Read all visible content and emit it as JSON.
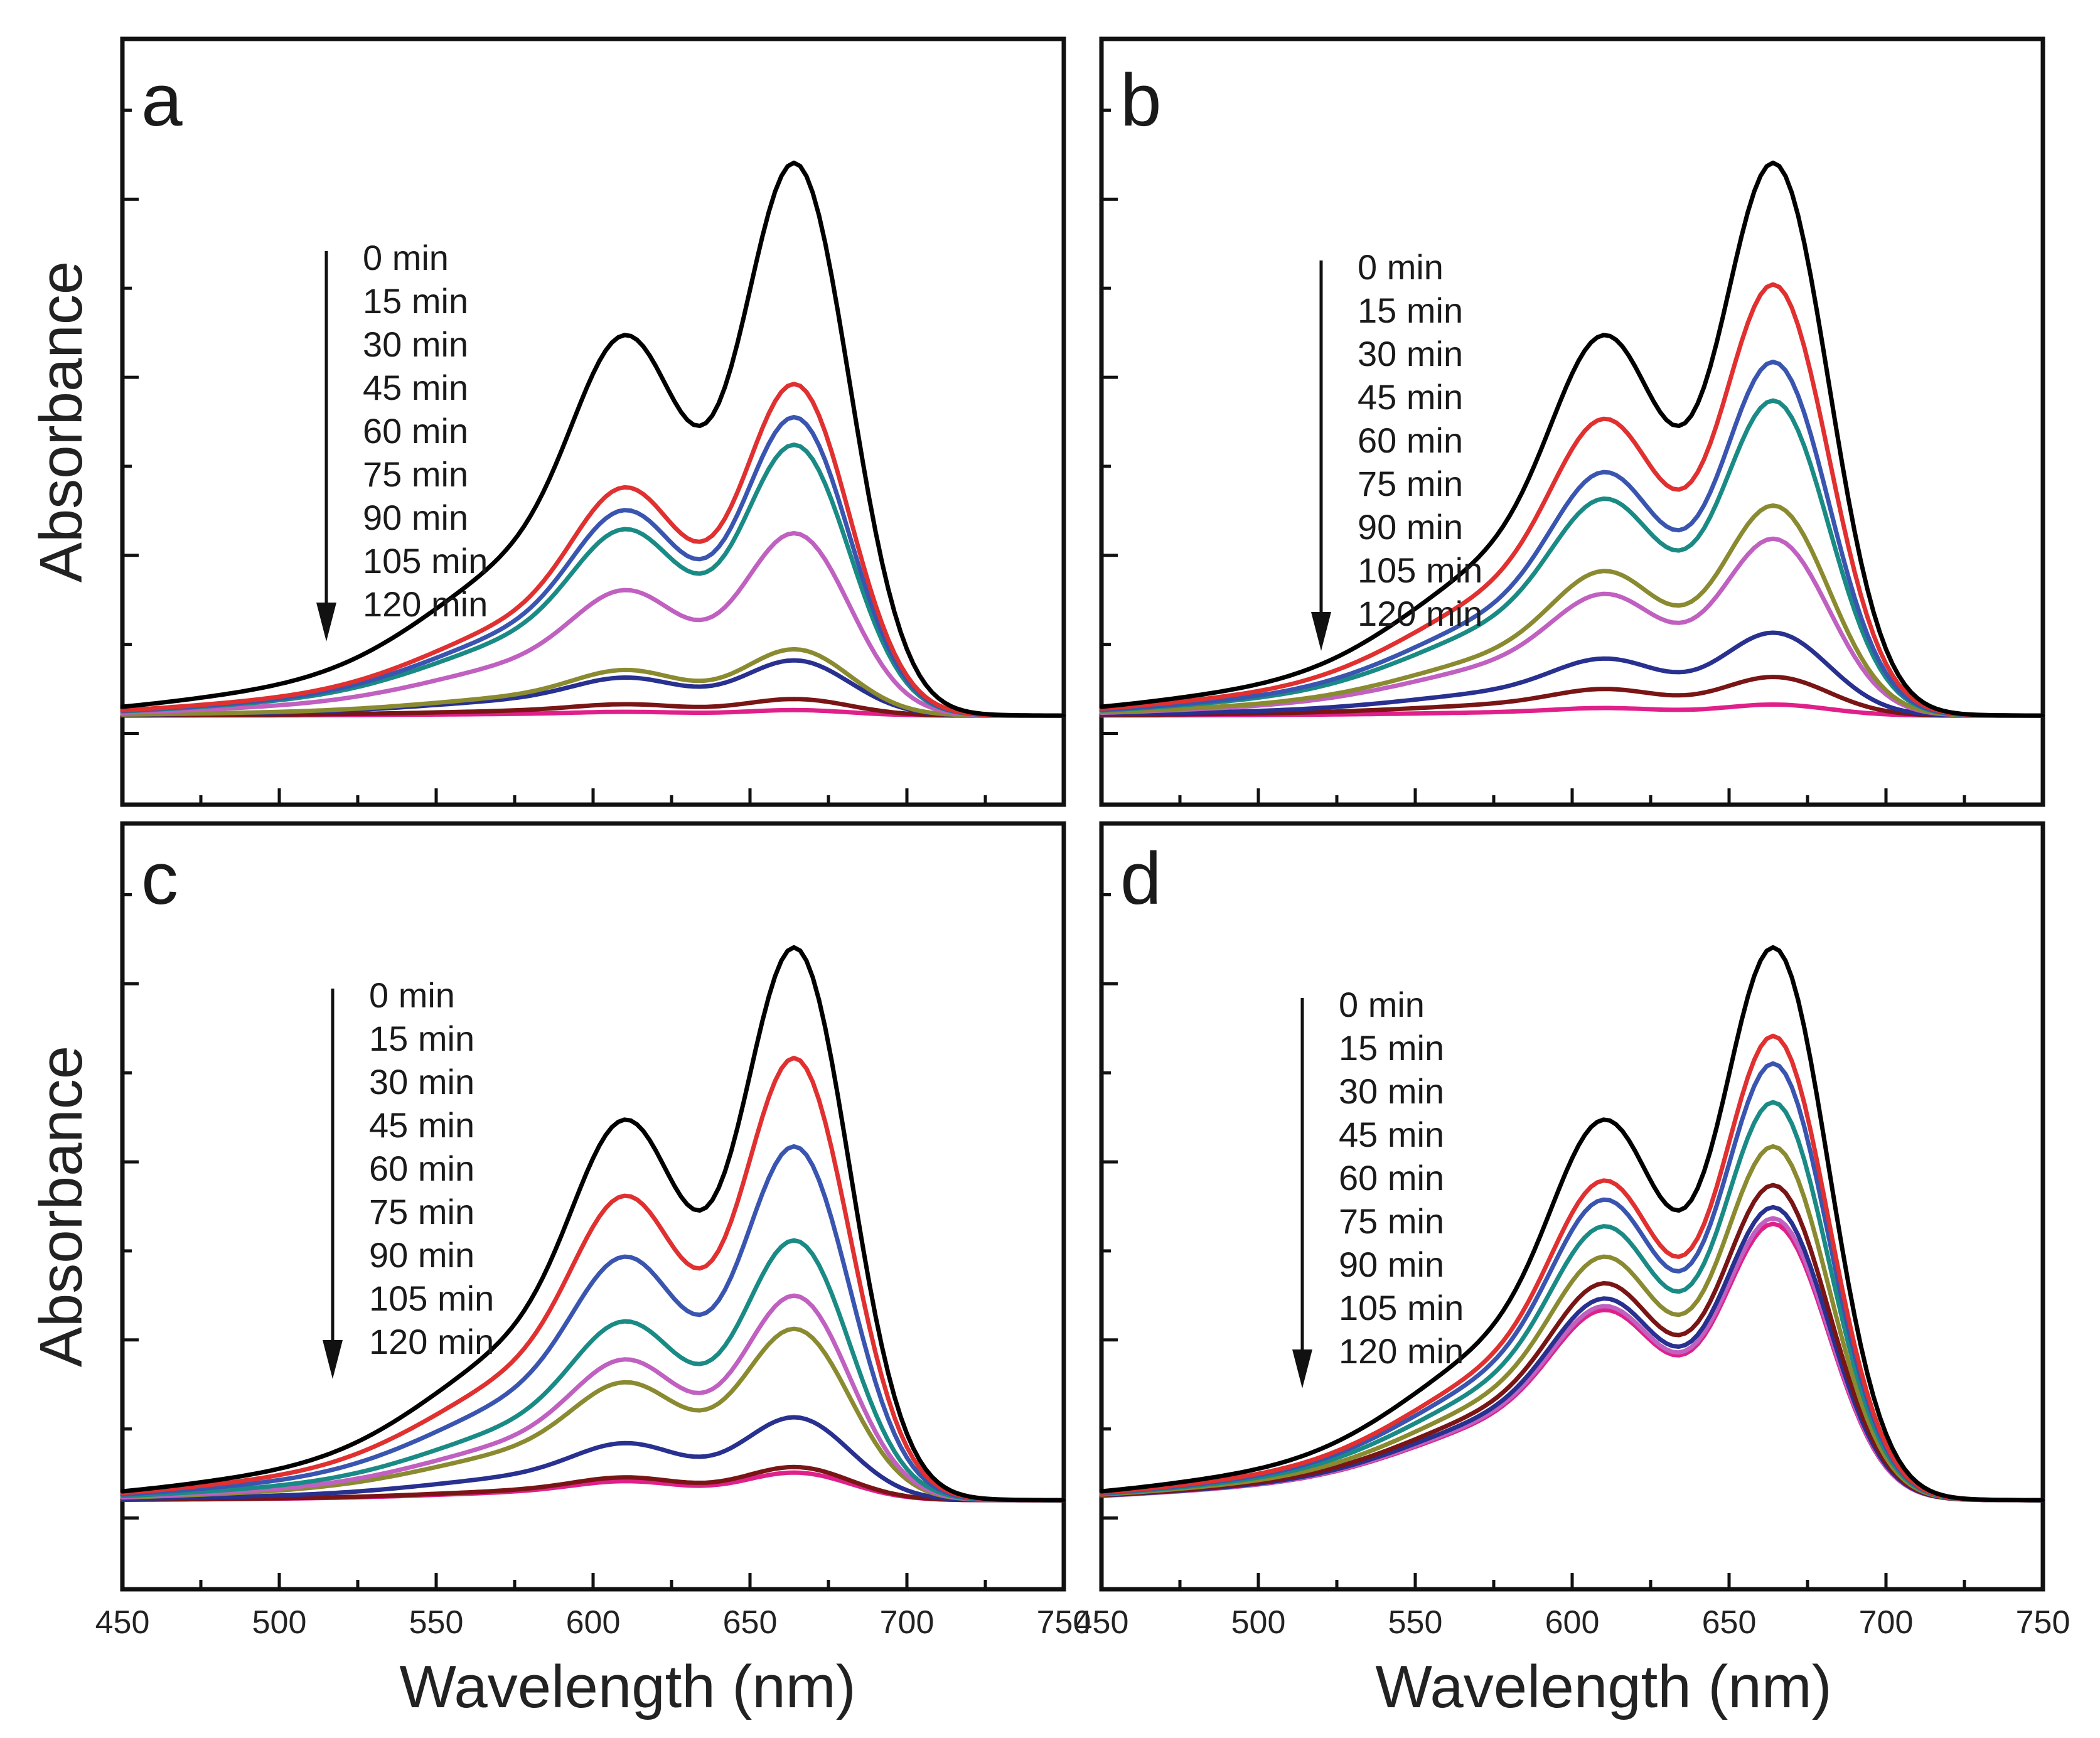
{
  "figure": {
    "y_axis_title": "Absorbance",
    "x_axis_title": "Wavelength (nm)",
    "x_tick_labels": [
      "450",
      "500",
      "550",
      "600",
      "650",
      "700",
      "750"
    ]
  },
  "chart_data": [
    {
      "type": "line",
      "panel": "a",
      "xlabel": "Wavelength (nm)",
      "ylabel": "Absorbance",
      "xlim": [
        450,
        750
      ],
      "ylim": [
        -0.25,
        1.9
      ],
      "legend": [
        "0 min",
        "15 min",
        "30 min",
        "45  min",
        "60 min",
        "75 min",
        "90 min",
        "105 min",
        "120 min"
      ],
      "series": [
        {
          "name": "0 min",
          "color": "#000000",
          "scale": 1.0,
          "base": 0.05
        },
        {
          "name": "15 min",
          "color": "#e03030",
          "scale": 0.6,
          "base": 0.03
        },
        {
          "name": "30 min",
          "color": "#3a55b0",
          "scale": 0.54,
          "base": 0.03
        },
        {
          "name": "45  min",
          "color": "#1a8a85",
          "scale": 0.49,
          "base": 0.025
        },
        {
          "name": "60 min",
          "color": "#c060c0",
          "scale": 0.33,
          "base": 0.02
        },
        {
          "name": "75 min",
          "color": "#8a8a30",
          "scale": 0.12,
          "base": 0.01
        },
        {
          "name": "90 min",
          "color": "#283090",
          "scale": 0.1,
          "base": 0.01
        },
        {
          "name": "105 min",
          "color": "#7a1515",
          "scale": 0.03,
          "base": 0.003
        },
        {
          "name": "120 min",
          "color": "#e0208a",
          "scale": 0.01,
          "base": 0.001
        }
      ]
    },
    {
      "type": "line",
      "panel": "b",
      "xlabel": "Wavelength (nm)",
      "ylabel": "Absorbance",
      "xlim": [
        450,
        750
      ],
      "ylim": [
        -0.25,
        1.9
      ],
      "legend": [
        "0 min",
        "15 min",
        "30 min",
        "45 min",
        "60 min",
        "75 min",
        "90 min",
        "105 min",
        "120 min"
      ],
      "series": [
        {
          "name": "0 min",
          "color": "#000000",
          "scale": 1.0,
          "base": 0.05
        },
        {
          "name": "15 min",
          "color": "#e03030",
          "scale": 0.78,
          "base": 0.04
        },
        {
          "name": "30 min",
          "color": "#3a55b0",
          "scale": 0.64,
          "base": 0.035
        },
        {
          "name": "45 min",
          "color": "#1a8a85",
          "scale": 0.57,
          "base": 0.03
        },
        {
          "name": "60 min",
          "color": "#8a8a30",
          "scale": 0.38,
          "base": 0.025
        },
        {
          "name": "75 min",
          "color": "#c060c0",
          "scale": 0.32,
          "base": 0.02
        },
        {
          "name": "90 min",
          "color": "#283090",
          "scale": 0.15,
          "base": 0.012
        },
        {
          "name": "105 min",
          "color": "#7a1515",
          "scale": 0.07,
          "base": 0.006
        },
        {
          "name": "120 min",
          "color": "#e0208a",
          "scale": 0.02,
          "base": 0.002
        }
      ]
    },
    {
      "type": "line",
      "panel": "c",
      "xlabel": "Wavelength (nm)",
      "ylabel": "Absorbance",
      "xlim": [
        450,
        750
      ],
      "ylim": [
        -0.25,
        1.9
      ],
      "legend": [
        "0 min",
        "15 min",
        "30 min",
        "45  min",
        "60 min",
        "75 min",
        "90 min",
        "105 min",
        "120 min"
      ],
      "series": [
        {
          "name": "0 min",
          "color": "#000000",
          "scale": 1.0,
          "base": 0.05
        },
        {
          "name": "15 min",
          "color": "#e03030",
          "scale": 0.8,
          "base": 0.04
        },
        {
          "name": "30 min",
          "color": "#3a55b0",
          "scale": 0.64,
          "base": 0.035
        },
        {
          "name": "45  min",
          "color": "#1a8a85",
          "scale": 0.47,
          "base": 0.03
        },
        {
          "name": "60 min",
          "color": "#c060c0",
          "scale": 0.37,
          "base": 0.025
        },
        {
          "name": "75 min",
          "color": "#8a8a30",
          "scale": 0.31,
          "base": 0.02
        },
        {
          "name": "90 min",
          "color": "#283090",
          "scale": 0.15,
          "base": 0.012
        },
        {
          "name": "105 min",
          "color": "#7a1515",
          "scale": 0.06,
          "base": 0.005
        },
        {
          "name": "120 min",
          "color": "#e0208a",
          "scale": 0.05,
          "base": 0.004
        }
      ]
    },
    {
      "type": "line",
      "panel": "d",
      "xlabel": "Wavelength (nm)",
      "ylabel": "Absorbance",
      "xlim": [
        450,
        750
      ],
      "ylim": [
        -0.25,
        1.9
      ],
      "legend": [
        "0 min",
        "15 min",
        "30 min",
        "45 min",
        "60 min",
        "75 min",
        "90 min",
        "105 min",
        "120 min"
      ],
      "series": [
        {
          "name": "0 min",
          "color": "#000000",
          "scale": 1.0,
          "base": 0.05
        },
        {
          "name": "15 min",
          "color": "#e03030",
          "scale": 0.84,
          "base": 0.045
        },
        {
          "name": "30 min",
          "color": "#3a55b0",
          "scale": 0.79,
          "base": 0.042
        },
        {
          "name": "45 min",
          "color": "#1a8a85",
          "scale": 0.72,
          "base": 0.04
        },
        {
          "name": "60 min",
          "color": "#8a8a30",
          "scale": 0.64,
          "base": 0.036
        },
        {
          "name": "75 min",
          "color": "#7a1515",
          "scale": 0.57,
          "base": 0.033
        },
        {
          "name": "90 min",
          "color": "#283090",
          "scale": 0.53,
          "base": 0.031
        },
        {
          "name": "105 min",
          "color": "#c060c0",
          "scale": 0.51,
          "base": 0.03
        },
        {
          "name": "120 min",
          "color": "#e0208a",
          "scale": 0.5,
          "base": 0.03
        }
      ]
    }
  ]
}
